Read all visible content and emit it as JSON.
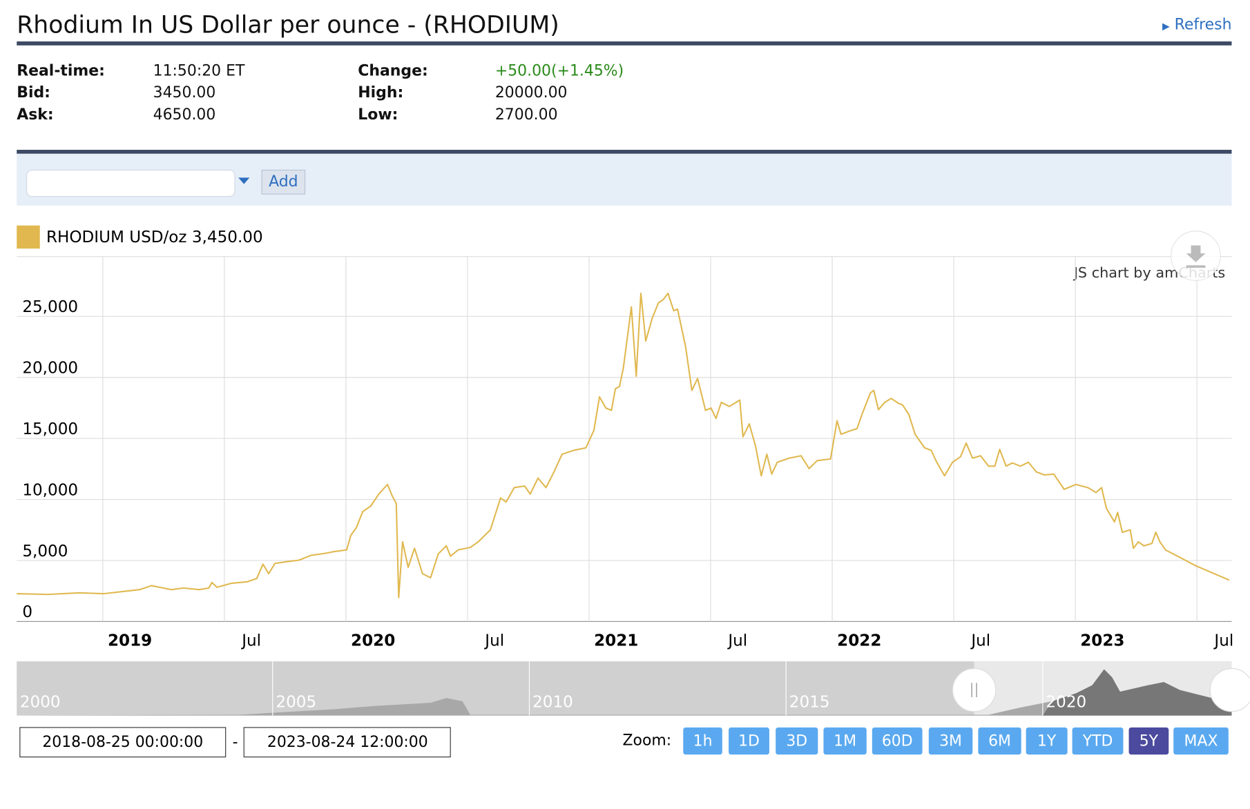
{
  "header": {
    "title": "Rhodium In US Dollar per ounce - (RHODIUM)",
    "refresh": "Refresh"
  },
  "quote": {
    "left": [
      [
        "Real-time:",
        "11:50:20 ET"
      ],
      [
        "Bid:",
        "3450.00"
      ],
      [
        "Ask:",
        "4650.00"
      ]
    ],
    "right": [
      [
        "Change:",
        "+50.00(+1.45%)"
      ],
      [
        "High:",
        "20000.00"
      ],
      [
        "Low:",
        "2700.00"
      ]
    ]
  },
  "compare": {
    "button": "Add"
  },
  "chart_data": {
    "type": "line",
    "legend_value": "3,450.00",
    "credit": "JS chart by amCharts",
    "x": [
      2018.646,
      2018.774,
      2018.905,
      2019.003,
      2019.151,
      2019.2,
      2019.233,
      2019.282,
      2019.331,
      2019.397,
      2019.436,
      2019.449,
      2019.469,
      2019.528,
      2019.594,
      2019.633,
      2019.659,
      2019.682,
      2019.708,
      2019.757,
      2019.807,
      2019.856,
      2019.921,
      2019.954,
      2020.003,
      2020.02,
      2020.043,
      2020.069,
      2020.102,
      2020.135,
      2020.171,
      2020.19,
      2020.207,
      2020.217,
      2020.233,
      2020.256,
      2020.282,
      2020.315,
      2020.348,
      2020.38,
      2020.413,
      2020.43,
      2020.462,
      2020.512,
      2020.544,
      2020.594,
      2020.636,
      2020.659,
      2020.692,
      2020.735,
      2020.758,
      2020.79,
      2020.823,
      2020.856,
      2020.889,
      2020.938,
      2020.987,
      2021.02,
      2021.043,
      2021.069,
      2021.092,
      2021.108,
      2021.125,
      2021.141,
      2021.174,
      2021.194,
      2021.213,
      2021.233,
      2021.259,
      2021.285,
      2021.305,
      2021.325,
      2021.348,
      2021.364,
      2021.397,
      2021.423,
      2021.446,
      2021.479,
      2021.502,
      2021.522,
      2021.544,
      2021.577,
      2021.62,
      2021.633,
      2021.659,
      2021.685,
      2021.708,
      2021.731,
      2021.751,
      2021.774,
      2021.823,
      2021.872,
      2021.905,
      2021.938,
      2021.993,
      2022.02,
      2022.036,
      2022.079,
      2022.102,
      2022.125,
      2022.157,
      2022.171,
      2022.19,
      2022.216,
      2022.243,
      2022.272,
      2022.289,
      2022.315,
      2022.341,
      2022.38,
      2022.407,
      2022.43,
      2022.462,
      2022.495,
      2022.528,
      2022.551,
      2022.577,
      2022.61,
      2022.643,
      2022.669,
      2022.689,
      2022.715,
      2022.741,
      2022.774,
      2022.807,
      2022.839,
      2022.872,
      2022.911,
      2022.954,
      2023.003,
      2023.052,
      2023.085,
      2023.108,
      2023.128,
      2023.161,
      2023.174,
      2023.193,
      2023.226,
      2023.239,
      2023.259,
      2023.282,
      2023.315,
      2023.331,
      2023.348,
      2023.371,
      2023.495,
      2023.633
    ],
    "series": [
      {
        "name": "RHODIUM USD/oz",
        "color": "#e0b84f",
        "values": [
          2280,
          2220,
          2350,
          2280,
          2610,
          2940,
          2810,
          2610,
          2740,
          2610,
          2740,
          3200,
          2810,
          3130,
          3260,
          3520,
          4700,
          3920,
          4760,
          4900,
          5030,
          5420,
          5610,
          5740,
          5870,
          7050,
          7700,
          9010,
          9460,
          10440,
          11230,
          10310,
          9660,
          1960,
          6530,
          4440,
          6000,
          3920,
          3590,
          5550,
          6200,
          5350,
          5870,
          6070,
          6530,
          7510,
          10120,
          9790,
          10970,
          11100,
          10440,
          11750,
          10970,
          12270,
          13710,
          14030,
          14230,
          15660,
          18410,
          17490,
          17300,
          19060,
          19250,
          20760,
          25780,
          20100,
          26890,
          22980,
          24800,
          26110,
          26370,
          26890,
          25460,
          25590,
          22520,
          18930,
          19910,
          17300,
          17490,
          16640,
          17950,
          17620,
          18140,
          15140,
          16190,
          14360,
          11940,
          13710,
          12080,
          13050,
          13380,
          13580,
          12530,
          13180,
          13320,
          16450,
          15340,
          15660,
          15800,
          17100,
          18730,
          18930,
          17360,
          17950,
          18280,
          17880,
          17750,
          16970,
          15340,
          14230,
          14030,
          13050,
          11940,
          13050,
          13510,
          14620,
          13380,
          13580,
          12730,
          12730,
          14100,
          12730,
          12990,
          12730,
          13050,
          12270,
          12010,
          12080,
          10830,
          11230,
          10970,
          10570,
          10970,
          9270,
          8160,
          8940,
          7310,
          7510,
          6000,
          6530,
          6200,
          6400,
          7310,
          6530,
          5870,
          4570,
          3390
        ]
      }
    ],
    "xlim": [
      2018.646,
      2023.643
    ],
    "xticks": [
      2019,
      {
        "value": 2019.5,
        "label": "Jul"
      },
      2020,
      {
        "value": 2020.5,
        "label": "Jul"
      },
      2021,
      {
        "value": 2021.5,
        "label": "Jul"
      },
      2022,
      {
        "value": 2022.5,
        "label": "Jul"
      },
      2023,
      {
        "value": 2023.5,
        "label": "Jul"
      }
    ],
    "ylim": [
      0,
      29900
    ],
    "yticks": [
      0,
      {
        "value": 5000,
        "label": "5,000"
      },
      {
        "value": 10000,
        "label": "10,000"
      },
      {
        "value": 15000,
        "label": "15,000"
      },
      {
        "value": 20000,
        "label": "20,000"
      },
      {
        "value": 25000,
        "label": "25,000"
      }
    ],
    "grid": true,
    "navigator_labels": [
      "2000",
      "2005",
      "2010",
      "2015",
      "2020"
    ],
    "range": [
      "2018-08-25 00:00:00",
      "2023-08-24 12:00:00"
    ],
    "zoom_label": "Zoom:",
    "zoom_buttons": [
      "1h",
      "1D",
      "3D",
      "1M",
      "60D",
      "3M",
      "6M",
      "1Y",
      "YTD",
      "5Y",
      "MAX"
    ],
    "zoom_active_index": 9
  }
}
